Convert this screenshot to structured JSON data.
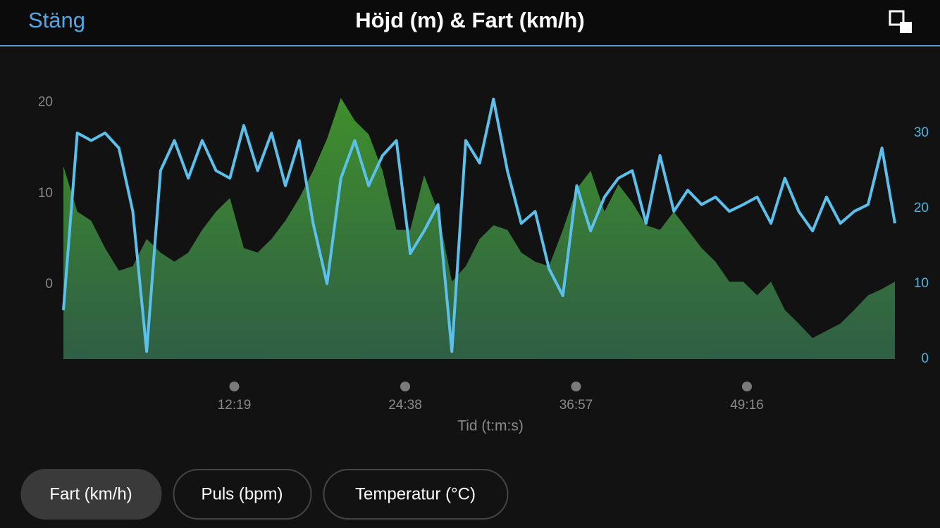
{
  "header": {
    "close": "Stäng",
    "title": "Höjd (m) & Fart (km/h)"
  },
  "chart_data": {
    "type": "combo",
    "x": [
      0,
      60,
      120,
      180,
      240,
      300,
      360,
      420,
      480,
      540,
      600,
      660,
      720,
      780,
      840,
      900,
      960,
      1020,
      1080,
      1140,
      1200,
      1260,
      1320,
      1380,
      1440,
      1500,
      1560,
      1620,
      1680,
      1740,
      1800,
      1860,
      1920,
      1980,
      2040,
      2100,
      2160,
      2220,
      2280,
      2340,
      2400,
      2460,
      2520,
      2580,
      2640,
      2700,
      2760,
      2820,
      2880,
      2940,
      3000,
      3060,
      3120,
      3180,
      3240,
      3300,
      3360,
      3420,
      3480,
      3540,
      3596
    ],
    "series": [
      {
        "type": "area",
        "color": "#3b8a2e",
        "axis": "y",
        "values": [
          13,
          8,
          7,
          4,
          1.5,
          2,
          5,
          3.5,
          2.5,
          3.5,
          6,
          8,
          9.5,
          4,
          3.5,
          5,
          7,
          9.5,
          12.5,
          16,
          20.5,
          18,
          16.5,
          12.5,
          6,
          6,
          12,
          8,
          0.3,
          2,
          5,
          6.5,
          6,
          3.5,
          2.5,
          2,
          6,
          10.5,
          12.5,
          8,
          11,
          9,
          6.5,
          6,
          8,
          6,
          4,
          2.5,
          0.3,
          0.3,
          -1.2,
          0.3,
          -2.8,
          -4.3,
          -5.9,
          -5.1,
          -4.3,
          -2.8,
          -1.2,
          -0.5,
          0.3
        ]
      },
      {
        "type": "line",
        "color": "#5bc0eb",
        "axis": "y2",
        "values": [
          6.5,
          30,
          29,
          30,
          28,
          19.6,
          1,
          25,
          29,
          24,
          29,
          25,
          24,
          31,
          25,
          30,
          23,
          29,
          18,
          10,
          24,
          29,
          23,
          27,
          29,
          14,
          17,
          20.5,
          1,
          29,
          26,
          34.5,
          25,
          18,
          19.6,
          12,
          8.4,
          23,
          17,
          21.5,
          24,
          25,
          18,
          27,
          19.6,
          22.4,
          20.5,
          21.5,
          19.6,
          20.5,
          21.5,
          18,
          24,
          19.6,
          17,
          21.5,
          18,
          19.6,
          20.5,
          28,
          18
        ]
      }
    ],
    "xlim": [
      0,
      3596
    ],
    "xticks": [
      {
        "value": 739,
        "label": "12:19"
      },
      {
        "value": 1478,
        "label": "24:38"
      },
      {
        "value": 2217,
        "label": "36:57"
      },
      {
        "value": 2956,
        "label": "49:16"
      }
    ],
    "xlabel": "Tid (t:m:s)",
    "ylim": [
      -8.2,
      21.2
    ],
    "yticks": [
      0,
      10,
      20
    ],
    "y2lim": [
      0,
      35.5
    ],
    "y2ticks": [
      0,
      10,
      20,
      30
    ]
  },
  "buttons": [
    {
      "label": "Fart (km/h)",
      "selected": true
    },
    {
      "label": "Puls (bpm)",
      "selected": false
    },
    {
      "label": "Temperatur (°C)",
      "selected": false
    }
  ]
}
